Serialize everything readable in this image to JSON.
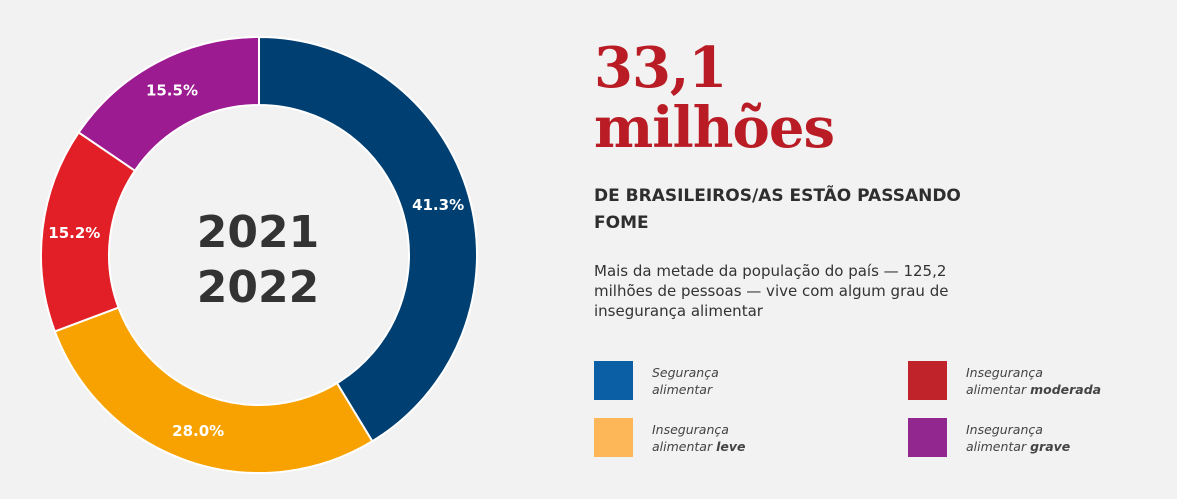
{
  "chart_data": {
    "type": "pie",
    "center_label": [
      "2021",
      "2022"
    ],
    "slices": [
      {
        "label": "Segurança alimentar",
        "value": 41.3,
        "value_label": "41.3%",
        "color": "#003f72"
      },
      {
        "label": "Insegurança alimentar leve",
        "value": 28.0,
        "value_label": "28.0%",
        "color": "#f7a200"
      },
      {
        "label": "Insegurança alimentar moderada",
        "value": 15.2,
        "value_label": "15.2%",
        "color": "#e21f26"
      },
      {
        "label": "Insegurança alimentar grave",
        "value": 15.5,
        "value_label": "15.5%",
        "color": "#9c1b91"
      }
    ]
  },
  "headline": {
    "line1": "33,1",
    "line2": "milhões",
    "color": "#b91c24"
  },
  "subhead": "DE BRASILEIROS/AS ESTÃO PASSANDO FOME",
  "description": "Mais da metade da população do país — 125,2 milhões de pessoas — vive com algum grau de insegurança alimentar",
  "legend": [
    {
      "line1": "Segurança",
      "line2": "alimentar",
      "bold": "",
      "color": "#0b5fa5"
    },
    {
      "line1": "Insegurança",
      "line2": "alimentar",
      "bold": "moderada",
      "color": "#c0242a"
    },
    {
      "line1": "Insegurança",
      "line2": "alimentar",
      "bold": "leve",
      "color": "#fdb758"
    },
    {
      "line1": "Insegurança",
      "line2": "alimentar",
      "bold": "grave",
      "color": "#92278f"
    }
  ]
}
